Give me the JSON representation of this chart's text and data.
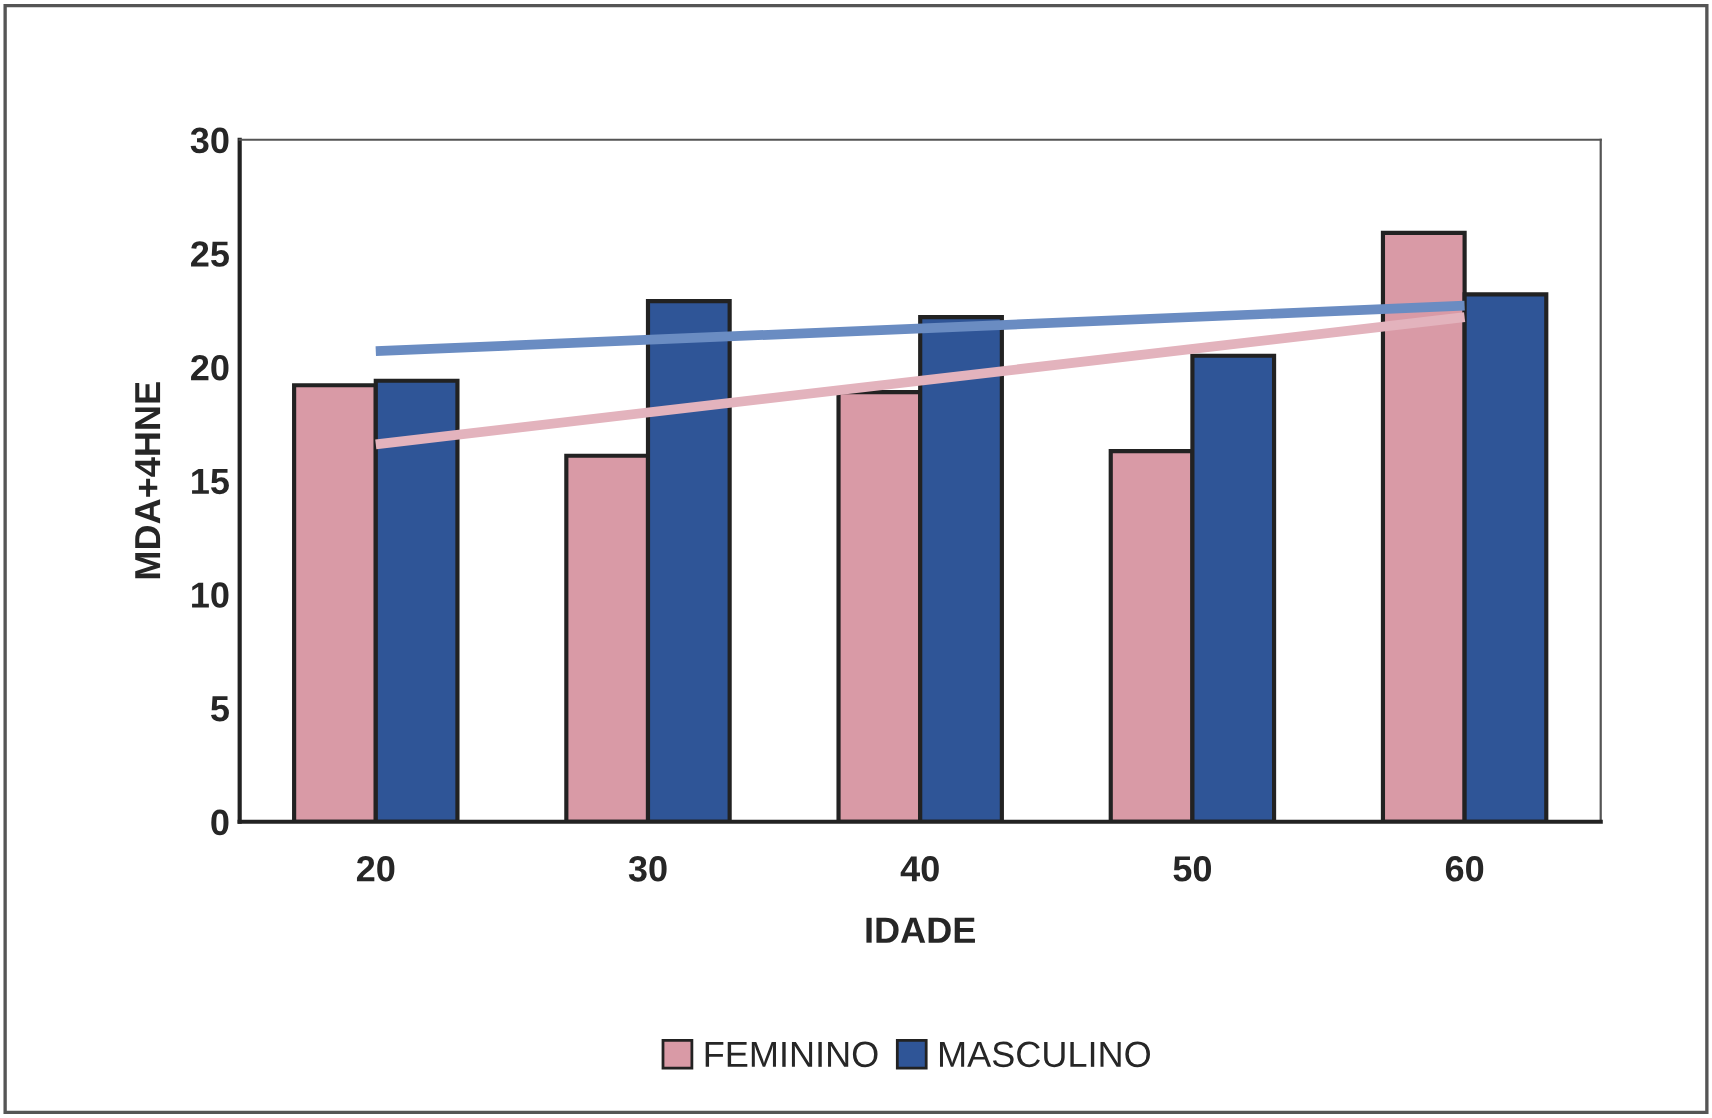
{
  "chart_data": {
    "type": "bar",
    "xlabel": "IDADE",
    "ylabel": "MDA+4HNE",
    "categories": [
      "20",
      "30",
      "40",
      "50",
      "60"
    ],
    "series": [
      {
        "name": "FEMININO",
        "color": "#d99aa6",
        "values": [
          19.2,
          16.1,
          18.9,
          16.3,
          25.9
        ]
      },
      {
        "name": "MASCULINO",
        "color": "#2f5597",
        "values": [
          19.4,
          22.9,
          22.2,
          20.5,
          23.2
        ]
      },
      {
        "type": "line",
        "color": "#e3b3bd",
        "x": [
          "20",
          "60"
        ],
        "values": [
          16.6,
          22.2
        ]
      },
      {
        "type": "line",
        "color": "#6a8cc2",
        "x": [
          "20",
          "60"
        ],
        "values": [
          20.7,
          22.7
        ]
      }
    ],
    "ylim": [
      0,
      30
    ],
    "yticks": [
      0,
      5,
      10,
      15,
      20,
      25,
      30
    ],
    "grid": false,
    "legend": "bottom"
  }
}
